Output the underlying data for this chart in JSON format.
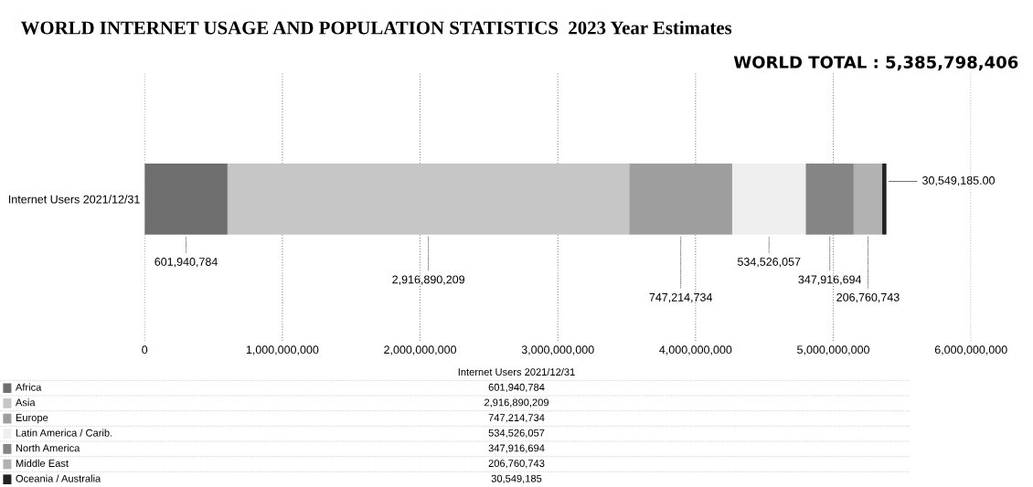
{
  "chart_data": {
    "type": "bar",
    "orientation": "horizontal",
    "stacked": true,
    "title": "WORLD INTERNET USAGE AND POPULATION STATISTICS  2023 Year Estimates",
    "annotations": [
      "WORLD TOTAL : 5,385,798,406",
      "601,940,784",
      "2,916,890,209",
      "747,214,734",
      "534,526,057",
      "347,916,694",
      "206,760,743",
      "30,549,185"
    ],
    "categories": [
      "Internet Users 2021/12/31"
    ],
    "series": [
      {
        "name": "Africa",
        "color": "#6e6e6e",
        "values": [
          601940784
        ],
        "value_labels": [
          "601,940,784"
        ]
      },
      {
        "name": "Asia",
        "color": "#c6c6c6",
        "values": [
          2916890209
        ],
        "value_labels": [
          "2,916,890,209"
        ]
      },
      {
        "name": "Europe",
        "color": "#9e9e9e",
        "values": [
          747214734
        ],
        "value_labels": [
          "747,214,734"
        ]
      },
      {
        "name": "Latin America / Carib.",
        "color": "#efefef",
        "values": [
          534526057
        ],
        "value_labels": [
          "534,526,057"
        ]
      },
      {
        "name": "North America",
        "color": "#858585",
        "values": [
          347916694
        ],
        "value_labels": [
          "347,916,694"
        ]
      },
      {
        "name": "Middle East",
        "color": "#b2b2b2",
        "values": [
          206760743
        ],
        "value_labels": [
          "206,760,743"
        ]
      },
      {
        "name": "Oceania / Australia",
        "color": "#222222",
        "values": [
          30549185
        ],
        "value_labels": [
          "30,549,185.00"
        ]
      }
    ],
    "xlim": [
      0,
      6000000000
    ],
    "xticks": [
      0,
      {
        "value": 1000000000,
        "label": "1,000,000,000"
      },
      {
        "value": 2000000000,
        "label": "2,000,000,000"
      },
      {
        "value": 3000000000,
        "label": "3,000,000,000"
      },
      {
        "value": 4000000000,
        "label": "4,000,000,000"
      },
      {
        "value": 5000000000,
        "label": "5,000,000,000"
      },
      {
        "value": 6000000000,
        "label": "6,000,000,000"
      }
    ],
    "grid": "x",
    "legend": "bottom"
  }
}
